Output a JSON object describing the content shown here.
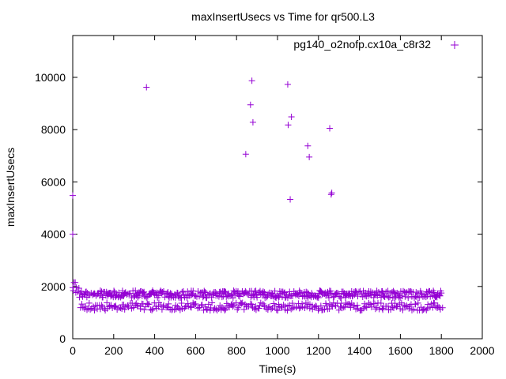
{
  "chart_data": {
    "type": "scatter",
    "title": "maxInsertUsecs vs Time for qr500.L3",
    "xlabel": "Time(s)",
    "ylabel": "maxInsertUsecs",
    "xlim": [
      0,
      2000
    ],
    "ylim": [
      0,
      11600
    ],
    "xticks": [
      0,
      200,
      400,
      600,
      800,
      1000,
      1200,
      1400,
      1600,
      1800,
      2000
    ],
    "yticks": [
      0,
      2000,
      4000,
      6000,
      8000,
      10000
    ],
    "grid": false,
    "legend_position": "top-right",
    "series": [
      {
        "name": "pg140_o2nofp.cx10a_c8r32",
        "color": "#9400d3",
        "marker": "plus",
        "outliers": [
          {
            "x": 0,
            "y": 5480
          },
          {
            "x": 0,
            "y": 4000
          },
          {
            "x": 360,
            "y": 9620
          },
          {
            "x": 845,
            "y": 7060
          },
          {
            "x": 868,
            "y": 8950
          },
          {
            "x": 875,
            "y": 9870
          },
          {
            "x": 880,
            "y": 8280
          },
          {
            "x": 1050,
            "y": 9730
          },
          {
            "x": 1052,
            "y": 8180
          },
          {
            "x": 1062,
            "y": 5330
          },
          {
            "x": 1068,
            "y": 8490
          },
          {
            "x": 1148,
            "y": 7380
          },
          {
            "x": 1155,
            "y": 6950
          },
          {
            "x": 1255,
            "y": 8050
          },
          {
            "x": 1262,
            "y": 5520
          },
          {
            "x": 1265,
            "y": 5580
          }
        ],
        "band": {
          "x_range": [
            0,
            1800
          ],
          "step": 6,
          "upper_center": 1700,
          "upper_spread": 280,
          "lower_center": 1230,
          "lower_spread": 150,
          "early_peak": 2400
        }
      }
    ]
  }
}
